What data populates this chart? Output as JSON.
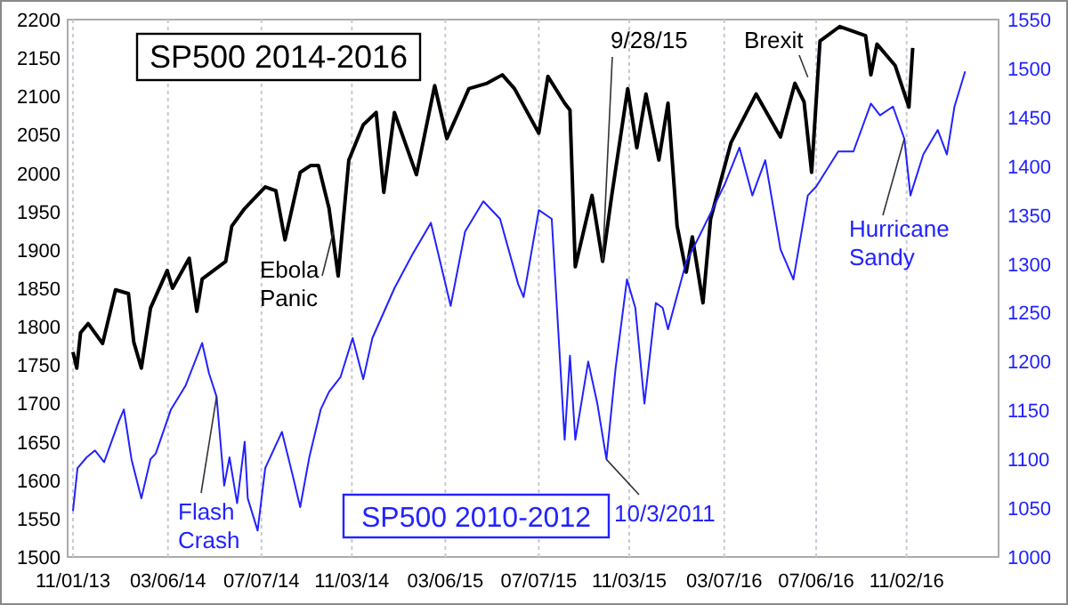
{
  "chart_data": {
    "type": "line",
    "xlim": [
      "2013-10-25",
      "2017-03-03"
    ],
    "xticks": [
      {
        "value": "2013-11-01",
        "label": "11/01/13"
      },
      {
        "value": "2014-03-06",
        "label": "03/06/14"
      },
      {
        "value": "2014-07-07",
        "label": "07/07/14"
      },
      {
        "value": "2014-11-03",
        "label": "11/03/14"
      },
      {
        "value": "2015-03-06",
        "label": "03/06/15"
      },
      {
        "value": "2015-07-07",
        "label": "07/07/15"
      },
      {
        "value": "2015-11-03",
        "label": "11/03/15"
      },
      {
        "value": "2016-03-07",
        "label": "03/07/16"
      },
      {
        "value": "2016-07-06",
        "label": "07/06/16"
      },
      {
        "value": "2016-11-02",
        "label": "11/02/16"
      }
    ],
    "ylim": [
      1500,
      2200
    ],
    "yticks": [
      1500,
      1550,
      1600,
      1650,
      1700,
      1750,
      1800,
      1850,
      1900,
      1950,
      2000,
      2050,
      2100,
      2150,
      2200
    ],
    "y2lim": [
      1000,
      1550
    ],
    "y2ticks": [
      1000,
      1050,
      1100,
      1150,
      1200,
      1250,
      1300,
      1350,
      1400,
      1450,
      1500,
      1550
    ],
    "grid": "x",
    "line_style": "solid",
    "marker": "none",
    "series": [
      {
        "name": "SP500 2014-2016",
        "color": "#000000",
        "x": [
          "2013-11-01",
          "2013-11-06",
          "2013-11-11",
          "2013-11-21",
          "2013-12-10",
          "2013-12-27",
          "2014-01-13",
          "2014-01-20",
          "2014-01-30",
          "2014-02-11",
          "2014-03-05",
          "2014-03-12",
          "2014-04-03",
          "2014-04-13",
          "2014-04-20",
          "2014-05-21",
          "2014-05-29",
          "2014-06-15",
          "2014-07-12",
          "2014-07-26",
          "2014-08-07",
          "2014-08-27",
          "2014-09-10",
          "2014-09-20",
          "2014-10-04",
          "2014-10-16",
          "2014-10-30",
          "2014-11-18",
          "2014-12-05",
          "2014-12-15",
          "2014-12-29",
          "2015-01-27",
          "2015-02-20",
          "2015-03-08",
          "2015-04-06",
          "2015-04-30",
          "2015-05-20",
          "2015-06-05",
          "2015-07-07",
          "2015-07-19",
          "2015-08-10",
          "2015-08-17",
          "2015-08-24",
          "2015-09-15",
          "2015-09-29",
          "2015-10-11",
          "2015-11-01",
          "2015-11-13",
          "2015-11-25",
          "2015-12-12",
          "2015-12-24",
          "2016-01-05",
          "2016-01-17",
          "2016-01-25",
          "2016-02-08",
          "2016-02-18",
          "2016-03-16",
          "2016-04-18",
          "2016-05-20",
          "2016-06-08",
          "2016-06-20",
          "2016-06-30",
          "2016-07-11",
          "2016-08-06",
          "2016-09-09",
          "2016-09-16",
          "2016-09-24",
          "2016-10-18",
          "2016-11-05",
          "2016-11-10"
        ],
        "values": [
          1767,
          1746,
          1792,
          1804,
          1778,
          1848,
          1843,
          1780,
          1746,
          1824,
          1873,
          1850,
          1889,
          1820,
          1862,
          1885,
          1931,
          1954,
          1982,
          1977,
          1913,
          2001,
          2010,
          2010,
          1954,
          1866,
          2017,
          2063,
          2079,
          1975,
          2079,
          1998,
          2114,
          2045,
          2110,
          2117,
          2128,
          2110,
          2052,
          2126,
          2091,
          2082,
          1878,
          1971,
          1885,
          1971,
          2110,
          2033,
          2103,
          2017,
          2091,
          1931,
          1871,
          1917,
          1831,
          1940,
          2040,
          2103,
          2047,
          2117,
          2093,
          2001,
          2172,
          2191,
          2179,
          2128,
          2168,
          2140,
          2086,
          2163
        ]
      },
      {
        "name": "SP500 2010-2012",
        "color": "#2222ff",
        "axis": "y2",
        "x": [
          "2013-11-01",
          "2013-11-07",
          "2013-11-19",
          "2013-11-30",
          "2013-12-12",
          "2013-12-31",
          "2014-01-07",
          "2014-01-17",
          "2014-01-30",
          "2014-02-11",
          "2014-02-18",
          "2014-03-10",
          "2014-03-29",
          "2014-04-20",
          "2014-04-29",
          "2014-05-09",
          "2014-05-19",
          "2014-05-26",
          "2014-06-05",
          "2014-06-15",
          "2014-06-19",
          "2014-07-02",
          "2014-07-12",
          "2014-08-03",
          "2014-08-17",
          "2014-08-27",
          "2014-09-08",
          "2014-09-23",
          "2014-10-04",
          "2014-10-19",
          "2014-11-04",
          "2014-11-18",
          "2014-11-30",
          "2014-12-29",
          "2015-01-22",
          "2015-02-15",
          "2015-03-13",
          "2015-04-01",
          "2015-04-25",
          "2015-05-17",
          "2015-06-10",
          "2015-06-17",
          "2015-07-07",
          "2015-07-24",
          "2015-08-10",
          "2015-08-17",
          "2015-08-24",
          "2015-09-10",
          "2015-09-22",
          "2015-10-04",
          "2015-10-16",
          "2015-10-31",
          "2015-11-11",
          "2015-11-23",
          "2015-12-08",
          "2015-12-17",
          "2015-12-24",
          "2016-01-17",
          "2016-02-03",
          "2016-03-08",
          "2016-03-27",
          "2016-04-13",
          "2016-04-30",
          "2016-05-20",
          "2016-06-06",
          "2016-06-25",
          "2016-07-06",
          "2016-08-04",
          "2016-08-24",
          "2016-09-16",
          "2016-09-28",
          "2016-10-15",
          "2016-10-30",
          "2016-11-07",
          "2016-11-24",
          "2016-12-13",
          "2016-12-25",
          "2017-01-04",
          "2017-01-18"
        ],
        "values": [
          1047,
          1091,
          1102,
          1109,
          1097,
          1138,
          1151,
          1100,
          1060,
          1100,
          1106,
          1151,
          1175,
          1219,
          1188,
          1164,
          1073,
          1102,
          1055,
          1118,
          1060,
          1027,
          1091,
          1128,
          1084,
          1051,
          1102,
          1151,
          1169,
          1184,
          1224,
          1182,
          1224,
          1275,
          1310,
          1342,
          1257,
          1333,
          1364,
          1346,
          1279,
          1266,
          1355,
          1346,
          1120,
          1206,
          1120,
          1200,
          1157,
          1100,
          1193,
          1284,
          1255,
          1157,
          1260,
          1255,
          1233,
          1302,
          1328,
          1382,
          1419,
          1370,
          1406,
          1315,
          1284,
          1370,
          1379,
          1415,
          1415,
          1464,
          1452,
          1461,
          1428,
          1370,
          1412,
          1437,
          1412,
          1461,
          1497
        ]
      }
    ],
    "annotations": [
      {
        "text": "Ebola Panic",
        "x": "2014-10-10",
        "y": 1925
      },
      {
        "text": "9/28/15",
        "x": "2015-09-29",
        "y": 1885
      },
      {
        "text": "Brexit",
        "x": "2016-06-25",
        "y": 2125
      },
      {
        "text": "Flash Crash",
        "x": "2014-05-09",
        "y": 1709
      },
      {
        "text": "10/3/2011",
        "x": "2015-10-04",
        "y": 1627
      },
      {
        "text": "Hurricane Sandy",
        "x": "2016-10-30",
        "y": 2045
      }
    ]
  }
}
